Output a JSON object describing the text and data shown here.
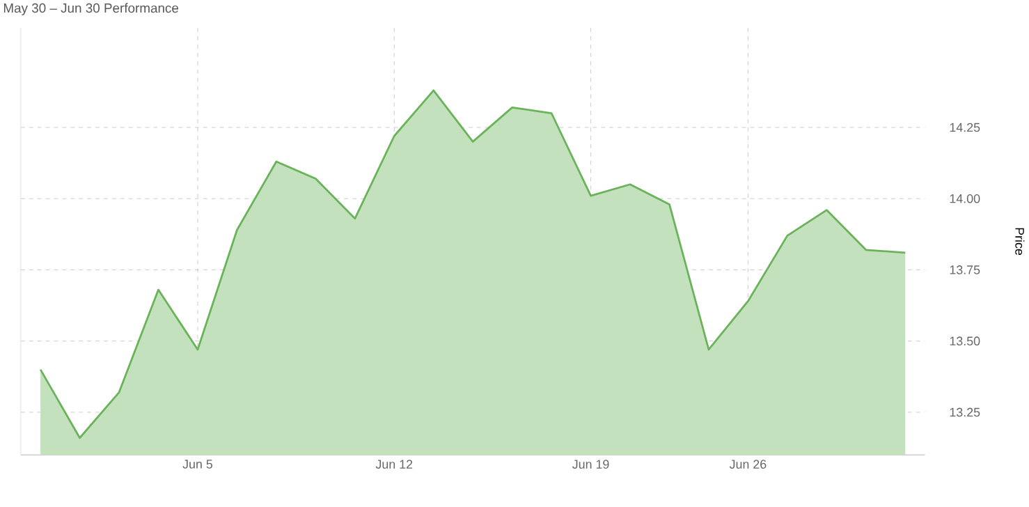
{
  "chart_data": {
    "type": "area",
    "title": "May 30 – Jun 30 Performance",
    "ylabel": "Price",
    "categories": [
      null,
      null,
      null,
      null,
      "Jun 5",
      null,
      null,
      null,
      null,
      "Jun 12",
      null,
      null,
      null,
      null,
      "Jun 19",
      null,
      null,
      null,
      "Jun 26",
      null,
      null,
      null,
      null
    ],
    "series": [
      {
        "color": "#6ab35a",
        "values": [
          13.4,
          13.16,
          13.32,
          13.68,
          13.47,
          13.89,
          14.13,
          14.07,
          13.93,
          14.22,
          14.38,
          14.2,
          14.32,
          14.3,
          14.01,
          14.05,
          13.98,
          13.47,
          13.64,
          13.87,
          13.96,
          13.82,
          13.81
        ]
      }
    ],
    "ylim": [
      13.1,
      14.6
    ],
    "yticks": [
      {
        "value": 13.25,
        "label": "13.25"
      },
      {
        "value": 13.5,
        "label": "13.50"
      },
      {
        "value": 13.75,
        "label": "13.75"
      },
      {
        "value": 14,
        "label": "14.00"
      },
      {
        "value": 14.25,
        "label": "14.25"
      }
    ],
    "grid": true,
    "marker": "none",
    "line_style": "solid"
  }
}
